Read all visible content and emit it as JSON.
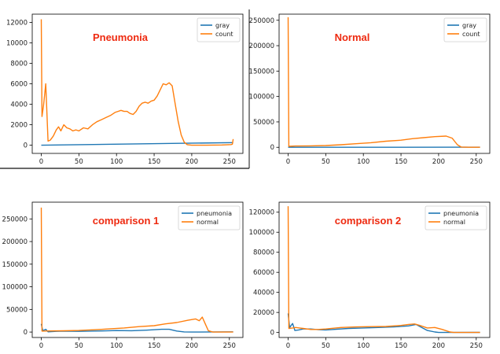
{
  "colors": {
    "series1": "#1f77b4",
    "series2": "#ff7f0e",
    "annotation": "#ee2a10"
  },
  "chart_data": [
    {
      "type": "line",
      "title": "",
      "annotation": "Pneumonia",
      "xlabel": "",
      "ylabel": "",
      "xlim": [
        -12,
        268
      ],
      "ylim": [
        -800,
        12800
      ],
      "xticks": [
        0,
        50,
        100,
        150,
        200,
        250
      ],
      "yticks": [
        0,
        2000,
        4000,
        6000,
        8000,
        10000,
        12000
      ],
      "legend_position": "top-right",
      "grid": false,
      "series": [
        {
          "name": "gray",
          "color": "#1f77b4",
          "points": [
            [
              0,
              0
            ],
            [
              255,
              255
            ]
          ]
        },
        {
          "name": "count",
          "color": "#ff7f0e",
          "points": [
            [
              0,
              12300
            ],
            [
              1,
              2800
            ],
            [
              3,
              3900
            ],
            [
              6,
              6000
            ],
            [
              9,
              400
            ],
            [
              12,
              500
            ],
            [
              16,
              900
            ],
            [
              20,
              1500
            ],
            [
              23,
              1800
            ],
            [
              26,
              1400
            ],
            [
              30,
              2000
            ],
            [
              34,
              1700
            ],
            [
              38,
              1600
            ],
            [
              42,
              1400
            ],
            [
              46,
              1500
            ],
            [
              50,
              1400
            ],
            [
              56,
              1700
            ],
            [
              62,
              1600
            ],
            [
              68,
              2000
            ],
            [
              74,
              2300
            ],
            [
              80,
              2500
            ],
            [
              86,
              2700
            ],
            [
              92,
              2900
            ],
            [
              98,
              3200
            ],
            [
              102,
              3300
            ],
            [
              106,
              3400
            ],
            [
              110,
              3300
            ],
            [
              114,
              3300
            ],
            [
              118,
              3100
            ],
            [
              122,
              3000
            ],
            [
              126,
              3300
            ],
            [
              130,
              3800
            ],
            [
              134,
              4100
            ],
            [
              138,
              4200
            ],
            [
              142,
              4100
            ],
            [
              146,
              4300
            ],
            [
              150,
              4400
            ],
            [
              154,
              4800
            ],
            [
              158,
              5400
            ],
            [
              162,
              6000
            ],
            [
              166,
              5900
            ],
            [
              170,
              6100
            ],
            [
              174,
              5800
            ],
            [
              178,
              4000
            ],
            [
              182,
              2300
            ],
            [
              186,
              1000
            ],
            [
              190,
              300
            ],
            [
              194,
              50
            ],
            [
              200,
              0
            ],
            [
              220,
              0
            ],
            [
              240,
              20
            ],
            [
              252,
              60
            ],
            [
              254,
              100
            ],
            [
              255,
              600
            ]
          ]
        }
      ]
    },
    {
      "type": "line",
      "title": "",
      "annotation": "Normal",
      "xlabel": "",
      "ylabel": "",
      "xlim": [
        -12,
        268
      ],
      "ylim": [
        -12000,
        262000
      ],
      "xticks": [
        0,
        50,
        100,
        150,
        200,
        250
      ],
      "yticks": [
        0,
        50000,
        100000,
        150000,
        200000,
        250000
      ],
      "legend_position": "top-right",
      "grid": false,
      "series": [
        {
          "name": "gray",
          "color": "#1f77b4",
          "points": [
            [
              0,
              0
            ],
            [
              255,
              255
            ]
          ]
        },
        {
          "name": "count",
          "color": "#ff7f0e",
          "points": [
            [
              0,
              256000
            ],
            [
              1,
              2000
            ],
            [
              10,
              2500
            ],
            [
              30,
              2800
            ],
            [
              50,
              3500
            ],
            [
              70,
              5000
            ],
            [
              90,
              7000
            ],
            [
              110,
              9000
            ],
            [
              130,
              12000
            ],
            [
              150,
              14000
            ],
            [
              165,
              17000
            ],
            [
              180,
              19000
            ],
            [
              195,
              21000
            ],
            [
              210,
              22000
            ],
            [
              218,
              18000
            ],
            [
              225,
              5000
            ],
            [
              230,
              500
            ],
            [
              240,
              0
            ],
            [
              255,
              0
            ]
          ]
        }
      ]
    },
    {
      "type": "line",
      "title": "",
      "annotation": "comparison 1",
      "xlabel": "",
      "ylabel": "",
      "xlim": [
        -12,
        268
      ],
      "ylim": [
        -12000,
        287000
      ],
      "xticks": [
        0,
        50,
        100,
        150,
        200,
        250
      ],
      "yticks": [
        0,
        50000,
        100000,
        150000,
        200000,
        250000
      ],
      "legend_position": "top-right",
      "grid": false,
      "series": [
        {
          "name": "pneumonia",
          "color": "#1f77b4",
          "points": [
            [
              0,
              18000
            ],
            [
              2,
              3000
            ],
            [
              6,
              6000
            ],
            [
              9,
              500
            ],
            [
              20,
              1500
            ],
            [
              30,
              2000
            ],
            [
              50,
              1500
            ],
            [
              80,
              2500
            ],
            [
              100,
              3300
            ],
            [
              120,
              3000
            ],
            [
              140,
              4200
            ],
            [
              160,
              6000
            ],
            [
              170,
              6100
            ],
            [
              180,
              2300
            ],
            [
              190,
              300
            ],
            [
              200,
              0
            ],
            [
              255,
              500
            ]
          ]
        },
        {
          "name": "normal",
          "color": "#ff7f0e",
          "points": [
            [
              0,
              275000
            ],
            [
              1,
              2000
            ],
            [
              10,
              2500
            ],
            [
              30,
              2800
            ],
            [
              50,
              3500
            ],
            [
              70,
              5000
            ],
            [
              90,
              7000
            ],
            [
              110,
              9000
            ],
            [
              130,
              12000
            ],
            [
              150,
              14000
            ],
            [
              165,
              18000
            ],
            [
              180,
              21000
            ],
            [
              195,
              26000
            ],
            [
              205,
              29000
            ],
            [
              210,
              25000
            ],
            [
              214,
              33000
            ],
            [
              218,
              18000
            ],
            [
              222,
              3000
            ],
            [
              228,
              0
            ],
            [
              255,
              0
            ]
          ]
        }
      ]
    },
    {
      "type": "line",
      "title": "",
      "annotation": "comparison 2",
      "xlabel": "",
      "ylabel": "",
      "xlim": [
        -12,
        268
      ],
      "ylim": [
        -5000,
        130000
      ],
      "xticks": [
        0,
        50,
        100,
        150,
        200,
        250
      ],
      "yticks": [
        0,
        20000,
        40000,
        60000,
        80000,
        100000,
        120000
      ],
      "legend_position": "top-right",
      "grid": false,
      "series": [
        {
          "name": "pneumonia",
          "color": "#1f77b4",
          "points": [
            [
              0,
              19000
            ],
            [
              2,
              5000
            ],
            [
              6,
              9000
            ],
            [
              9,
              2000
            ],
            [
              14,
              2500
            ],
            [
              20,
              3500
            ],
            [
              30,
              3500
            ],
            [
              40,
              2800
            ],
            [
              50,
              2500
            ],
            [
              60,
              3000
            ],
            [
              80,
              4000
            ],
            [
              100,
              4500
            ],
            [
              120,
              5000
            ],
            [
              140,
              5500
            ],
            [
              160,
              6500
            ],
            [
              170,
              8000
            ],
            [
              175,
              6000
            ],
            [
              185,
              2000
            ],
            [
              195,
              500
            ],
            [
              200,
              0
            ],
            [
              255,
              100
            ]
          ]
        },
        {
          "name": "normal",
          "color": "#ff7f0e",
          "points": [
            [
              0,
              126000
            ],
            [
              1,
              4000
            ],
            [
              6,
              4500
            ],
            [
              10,
              5000
            ],
            [
              20,
              4000
            ],
            [
              30,
              3000
            ],
            [
              40,
              3000
            ],
            [
              50,
              3500
            ],
            [
              70,
              5000
            ],
            [
              90,
              5500
            ],
            [
              110,
              5800
            ],
            [
              130,
              6000
            ],
            [
              150,
              7000
            ],
            [
              160,
              8000
            ],
            [
              168,
              8500
            ],
            [
              175,
              7000
            ],
            [
              185,
              4500
            ],
            [
              195,
              5000
            ],
            [
              205,
              3000
            ],
            [
              215,
              500
            ],
            [
              220,
              0
            ],
            [
              255,
              0
            ]
          ]
        }
      ]
    }
  ]
}
